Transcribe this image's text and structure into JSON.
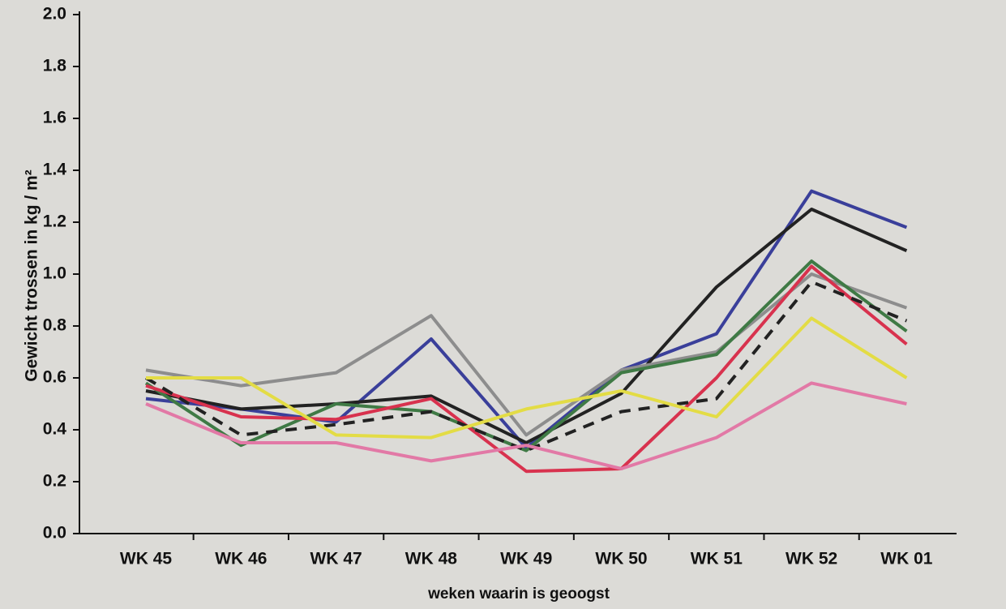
{
  "chart_data": {
    "type": "line",
    "y_label": "Gewicht trossen in kg / m²",
    "x_label": "weken waarin is geoogst",
    "categories": [
      "WK 45",
      "WK 46",
      "WK 47",
      "WK 48",
      "WK 49",
      "WK 50",
      "WK 51",
      "WK 52",
      "WK 01"
    ],
    "ylim": [
      0,
      2
    ],
    "yticks": [
      {
        "value": 0,
        "label": "0.0"
      },
      0.2,
      0.4,
      0.6,
      0.8,
      {
        "value": 1,
        "label": "1.0"
      },
      1.2,
      1.4,
      1.6,
      1.8,
      {
        "value": 2,
        "label": "2.0"
      }
    ],
    "series": [
      {
        "color": "#3a3f9a",
        "values": [
          0.52,
          0.48,
          0.43,
          0.75,
          0.33,
          0.63,
          0.77,
          1.32,
          1.18
        ]
      },
      {
        "color": "#222222",
        "values": [
          0.55,
          0.48,
          0.5,
          0.53,
          0.35,
          0.54,
          0.95,
          1.25,
          1.09
        ]
      },
      {
        "color": "#8d8d8d",
        "values": [
          0.63,
          0.57,
          0.62,
          0.84,
          0.38,
          0.63,
          0.7,
          1.0,
          0.87
        ]
      },
      {
        "color": "#3f7a45",
        "values": [
          0.58,
          0.34,
          0.5,
          0.47,
          0.32,
          0.62,
          0.69,
          1.05,
          0.78
        ]
      },
      {
        "color": "#d8324e",
        "values": [
          0.57,
          0.45,
          0.44,
          0.52,
          0.24,
          0.25,
          0.6,
          1.03,
          0.73
        ]
      },
      {
        "color": "#222222",
        "dash": true,
        "values": [
          0.6,
          0.38,
          0.42,
          0.47,
          0.32,
          0.47,
          0.52,
          0.97,
          0.82
        ]
      },
      {
        "color": "#e3dc45",
        "values": [
          0.6,
          0.6,
          0.38,
          0.37,
          0.48,
          0.55,
          0.45,
          0.83,
          0.6
        ]
      },
      {
        "color": "#e279a6",
        "values": [
          0.5,
          0.35,
          0.35,
          0.28,
          0.34,
          0.25,
          0.37,
          0.58,
          0.5
        ]
      }
    ]
  }
}
